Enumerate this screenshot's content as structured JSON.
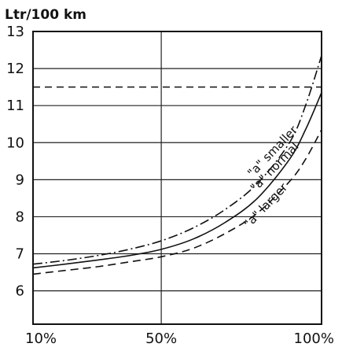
{
  "chart_data": {
    "type": "line",
    "ylabel": "Ltr/100 km",
    "xlabel": "",
    "x_tick_labels": [
      "10%",
      "50%",
      "100%"
    ],
    "xlim": [
      10,
      100
    ],
    "ylim": [
      5.1,
      13
    ],
    "y_ticks": [
      6,
      7,
      8,
      9,
      10,
      11,
      12,
      13
    ],
    "grid": true,
    "reference_lines": [
      {
        "style": "dashed",
        "y": 11.5
      }
    ],
    "series": [
      {
        "name": "\"a\" smaller",
        "style": "dash-dot",
        "x": [
          10,
          20,
          30,
          40,
          50,
          60,
          70,
          80,
          90,
          95,
          100
        ],
        "y": [
          6.72,
          6.82,
          6.95,
          7.12,
          7.35,
          7.7,
          8.2,
          8.9,
          10.0,
          11.0,
          12.35
        ]
      },
      {
        "name": "\"a\" normal",
        "style": "solid",
        "x": [
          10,
          20,
          30,
          40,
          50,
          60,
          70,
          80,
          90,
          95,
          100
        ],
        "y": [
          6.62,
          6.72,
          6.83,
          6.95,
          7.12,
          7.4,
          7.85,
          8.5,
          9.55,
          10.35,
          11.35
        ]
      },
      {
        "name": "\"a\" larger",
        "style": "dashed",
        "x": [
          10,
          20,
          30,
          40,
          50,
          60,
          70,
          80,
          90,
          95,
          100
        ],
        "y": [
          6.45,
          6.55,
          6.65,
          6.78,
          6.92,
          7.15,
          7.55,
          8.1,
          8.95,
          9.55,
          10.35
        ]
      }
    ]
  }
}
